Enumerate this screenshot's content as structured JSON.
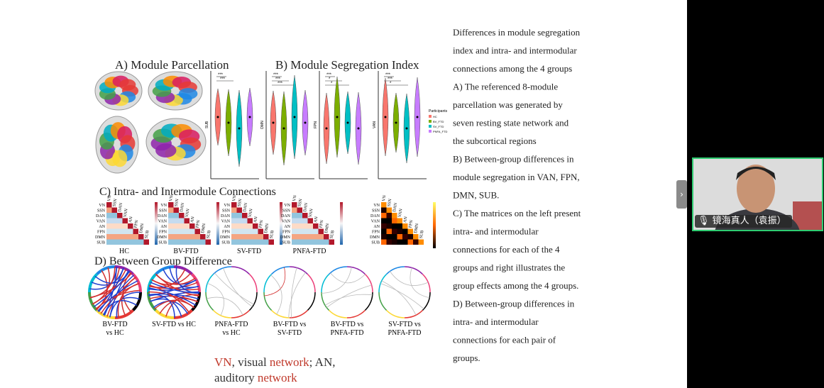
{
  "slide": {
    "panel_a": {
      "title": "A) Module Parcellation"
    },
    "panel_b": {
      "title": "B) Module Segregation Index",
      "plots": [
        {
          "label": "SUB",
          "stars": [
            "***",
            "***"
          ]
        },
        {
          "label": "DMN",
          "stars": [
            "***",
            "***",
            "***"
          ]
        },
        {
          "label": "FPN",
          "stars": [
            "***",
            "*",
            "*"
          ]
        },
        {
          "label": "VAN",
          "stars": [
            "***",
            "***",
            "*"
          ]
        }
      ],
      "legend": {
        "title": "Participants",
        "items": [
          "HC",
          "BV_FTD",
          "SV_FTD",
          "PNFA_FTD"
        ]
      }
    },
    "panel_c": {
      "title": "C) Intra- and Intermodule Connections",
      "networks": [
        "VN",
        "SSN",
        "DAN",
        "VAN",
        "AN",
        "FPN",
        "DMN",
        "SUB"
      ],
      "groups": [
        "HC",
        "BV-FTD",
        "SV-FTD",
        "PNFA-FTD"
      ]
    },
    "panel_d": {
      "title": "D) Between Group Difference",
      "comparisons": [
        [
          "BV-FTD",
          "vs HC"
        ],
        [
          "SV-FTD vs HC"
        ],
        [
          "PNFA-FTD",
          "vs HC"
        ],
        [
          "BV-FTD vs",
          "SV-FTD"
        ],
        [
          "BV-FTD vs",
          "PNFA-FTD"
        ],
        [
          "SV-FTD vs",
          "PNFA-FTD"
        ]
      ]
    },
    "caption": [
      [
        {
          "text": "VN",
          "color": "#c0392b"
        },
        {
          "text": ", visual ",
          "color": "#333333"
        },
        {
          "text": "network",
          "color": "#c0392b"
        },
        {
          "text": "; AN,",
          "color": "#333333"
        }
      ],
      [
        {
          "text": "auditory ",
          "color": "#333333"
        },
        {
          "text": "network",
          "color": "#c0392b"
        }
      ]
    ],
    "description": [
      "Differences in module segregation",
      "index and intra- and intermodular",
      "connections among the 4 groups",
      "A) The referenced 8-module",
      "parcellation was generated by",
      "seven resting state network and",
      "the subcortical regions",
      "B) Between-group differences in",
      "module segregation in VAN, FPN,",
      "DMN, SUB.",
      "C) The matrices on the left present",
      "intra- and intermodular",
      "connections for each of the 4",
      "groups and right illustrates the",
      "group effects among the 4 groups.",
      "D) Between-group differences in",
      "intra- and intermodular",
      "connections for each pair of",
      "groups."
    ]
  },
  "participant": {
    "name": "镜海真人（袁振）"
  }
}
